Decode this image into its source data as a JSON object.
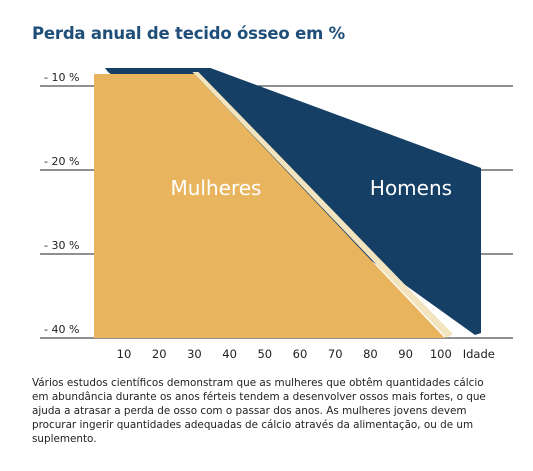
{
  "header": {
    "title": "Perda anual de tecido ósseo em %"
  },
  "caption": "Vários estudos científicos demonstram que as mulheres que obtêm quantidades cálcio em abundância durante os anos férteis tendem a desenvolver ossos mais fortes, o que ajuda a atrasar a perda de osso com o passar dos anos. As mulheres jovens devem procurar ingerir quantidades adequadas de cálcio através da alimentação, ou de um suplemento.",
  "colors": {
    "women": "#e8b45e",
    "men": "#163f66",
    "men_edge": "#0d2e4f",
    "cream": "#f2e4be",
    "grid": "#222222"
  },
  "chart_data": {
    "type": "area",
    "title": "Perda anual de tecido ósseo em %",
    "y_tick_labels": [
      "- 10 %",
      "- 20 %",
      "- 30 %",
      "- 40 %"
    ],
    "y_ticks": [
      -10,
      -20,
      -30,
      -40
    ],
    "x_tick_labels": [
      "10",
      "20",
      "30",
      "40",
      "50",
      "60",
      "70",
      "80",
      "90",
      "100",
      "Idade"
    ],
    "x_ticks": [
      10,
      20,
      30,
      40,
      50,
      60,
      70,
      80,
      90,
      100
    ],
    "ylim": [
      -40,
      -10
    ],
    "series": [
      {
        "name": "Mulheres",
        "x": [
          10,
          30,
          100
        ],
        "y": [
          -10,
          -10,
          -40
        ]
      },
      {
        "name": "Homens",
        "x": [
          10,
          30,
          110
        ],
        "y": [
          -10,
          -10,
          -40
        ]
      }
    ],
    "grid": true
  }
}
